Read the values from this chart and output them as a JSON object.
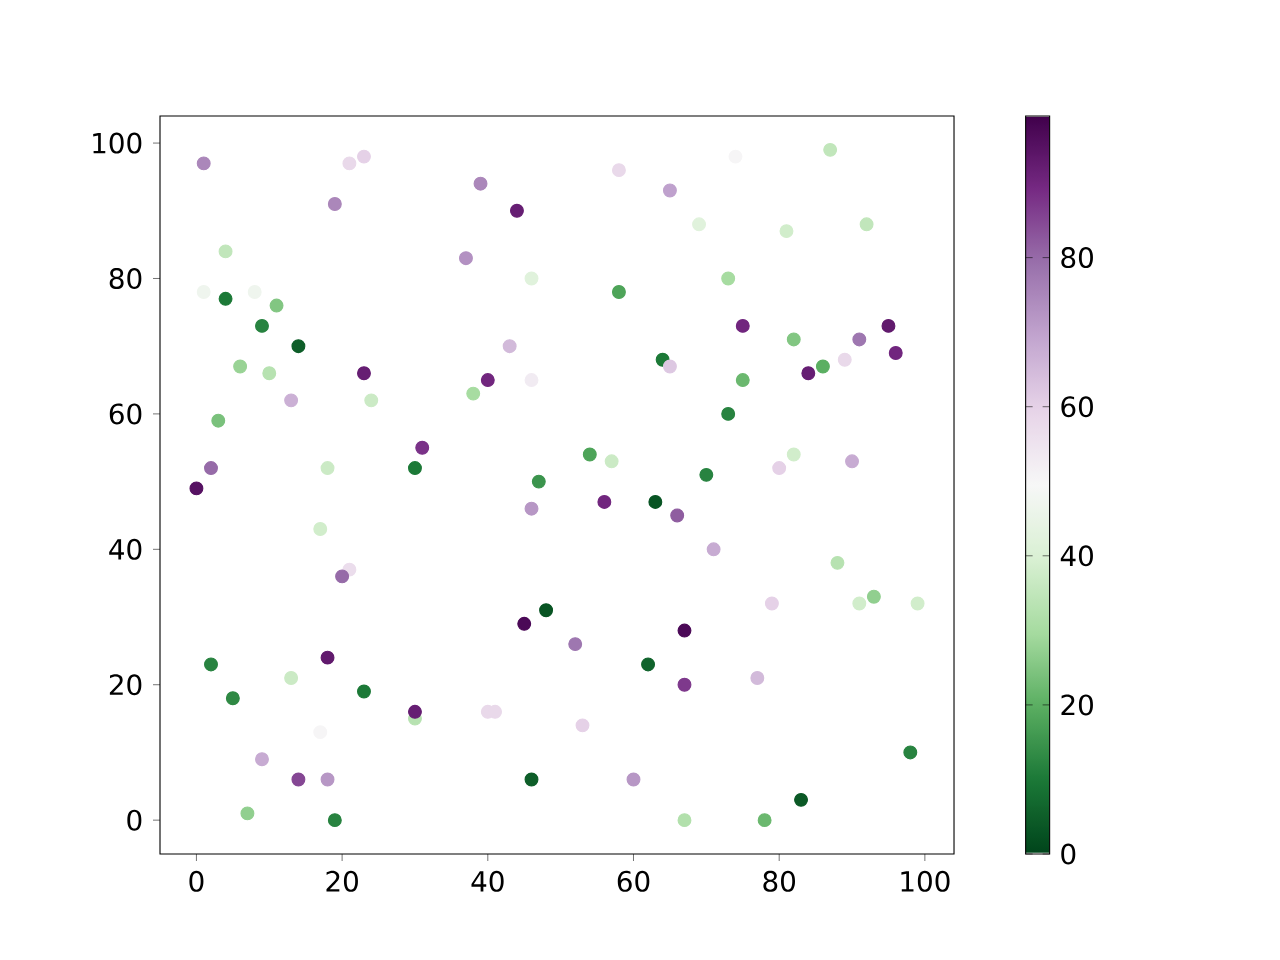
{
  "chart_data": {
    "type": "scatter",
    "x": [
      1,
      21,
      23,
      19,
      39,
      44,
      4,
      37,
      46,
      1,
      8,
      4,
      11,
      9,
      14,
      43,
      6,
      10,
      23,
      40,
      46,
      38,
      24,
      13,
      3,
      2,
      0,
      18,
      30,
      31,
      47,
      46,
      17,
      21,
      20,
      2,
      5,
      13,
      23,
      18,
      17,
      9,
      14,
      18,
      7,
      19,
      30,
      30,
      40,
      41,
      45,
      48,
      46,
      58,
      74,
      87,
      65,
      69,
      81,
      92,
      58,
      73,
      75,
      82,
      91,
      95,
      96,
      64,
      65,
      75,
      84,
      86,
      89,
      73,
      54,
      57,
      70,
      80,
      82,
      90,
      56,
      63,
      66,
      71,
      88,
      91,
      93,
      99,
      79,
      52,
      67,
      62,
      67,
      77,
      53,
      60,
      83,
      98,
      67,
      78
    ],
    "values": [
      97,
      97,
      98,
      91,
      94,
      90,
      84,
      83,
      80,
      78,
      78,
      77,
      76,
      73,
      70,
      70,
      67,
      66,
      66,
      65,
      65,
      63,
      62,
      62,
      59,
      52,
      49,
      52,
      52,
      55,
      50,
      46,
      43,
      37,
      36,
      23,
      18,
      21,
      19,
      24,
      13,
      9,
      6,
      6,
      1,
      0,
      15,
      16,
      16,
      16,
      29,
      31,
      6,
      96,
      98,
      99,
      93,
      88,
      87,
      88,
      78,
      80,
      73,
      71,
      71,
      73,
      69,
      68,
      67,
      65,
      66,
      67,
      68,
      60,
      54,
      53,
      51,
      52,
      54,
      53,
      47,
      47,
      45,
      40,
      38,
      32,
      33,
      32,
      32,
      26,
      28,
      23,
      20,
      21,
      14,
      6,
      3,
      10,
      0,
      0
    ],
    "cvalues": [
      75,
      58,
      60,
      75,
      75,
      92,
      35,
      73,
      42,
      47,
      47,
      10,
      25,
      12,
      5,
      65,
      28,
      33,
      92,
      90,
      53,
      30,
      37,
      67,
      24,
      80,
      95,
      37,
      10,
      88,
      15,
      72,
      38,
      57,
      80,
      12,
      13,
      37,
      10,
      93,
      50,
      68,
      85,
      72,
      27,
      12,
      33,
      92,
      58,
      58,
      97,
      3,
      5,
      58,
      50,
      35,
      70,
      42,
      38,
      35,
      18,
      30,
      90,
      25,
      78,
      93,
      90,
      10,
      62,
      22,
      92,
      20,
      58,
      12,
      18,
      37,
      12,
      60,
      38,
      68,
      90,
      3,
      82,
      68,
      33,
      38,
      27,
      38,
      60,
      78,
      97,
      6,
      87,
      65,
      60,
      72,
      4,
      12,
      32,
      22
    ],
    "marker": "circle",
    "xlim": [
      -5,
      104
    ],
    "ylim": [
      -5,
      104
    ],
    "xticks": [
      0,
      20,
      40,
      60,
      80,
      100
    ],
    "yticks": [
      0,
      20,
      40,
      60,
      80,
      100
    ],
    "clim": [
      0,
      99
    ],
    "cticks": [
      0,
      20,
      40,
      60,
      80
    ]
  }
}
